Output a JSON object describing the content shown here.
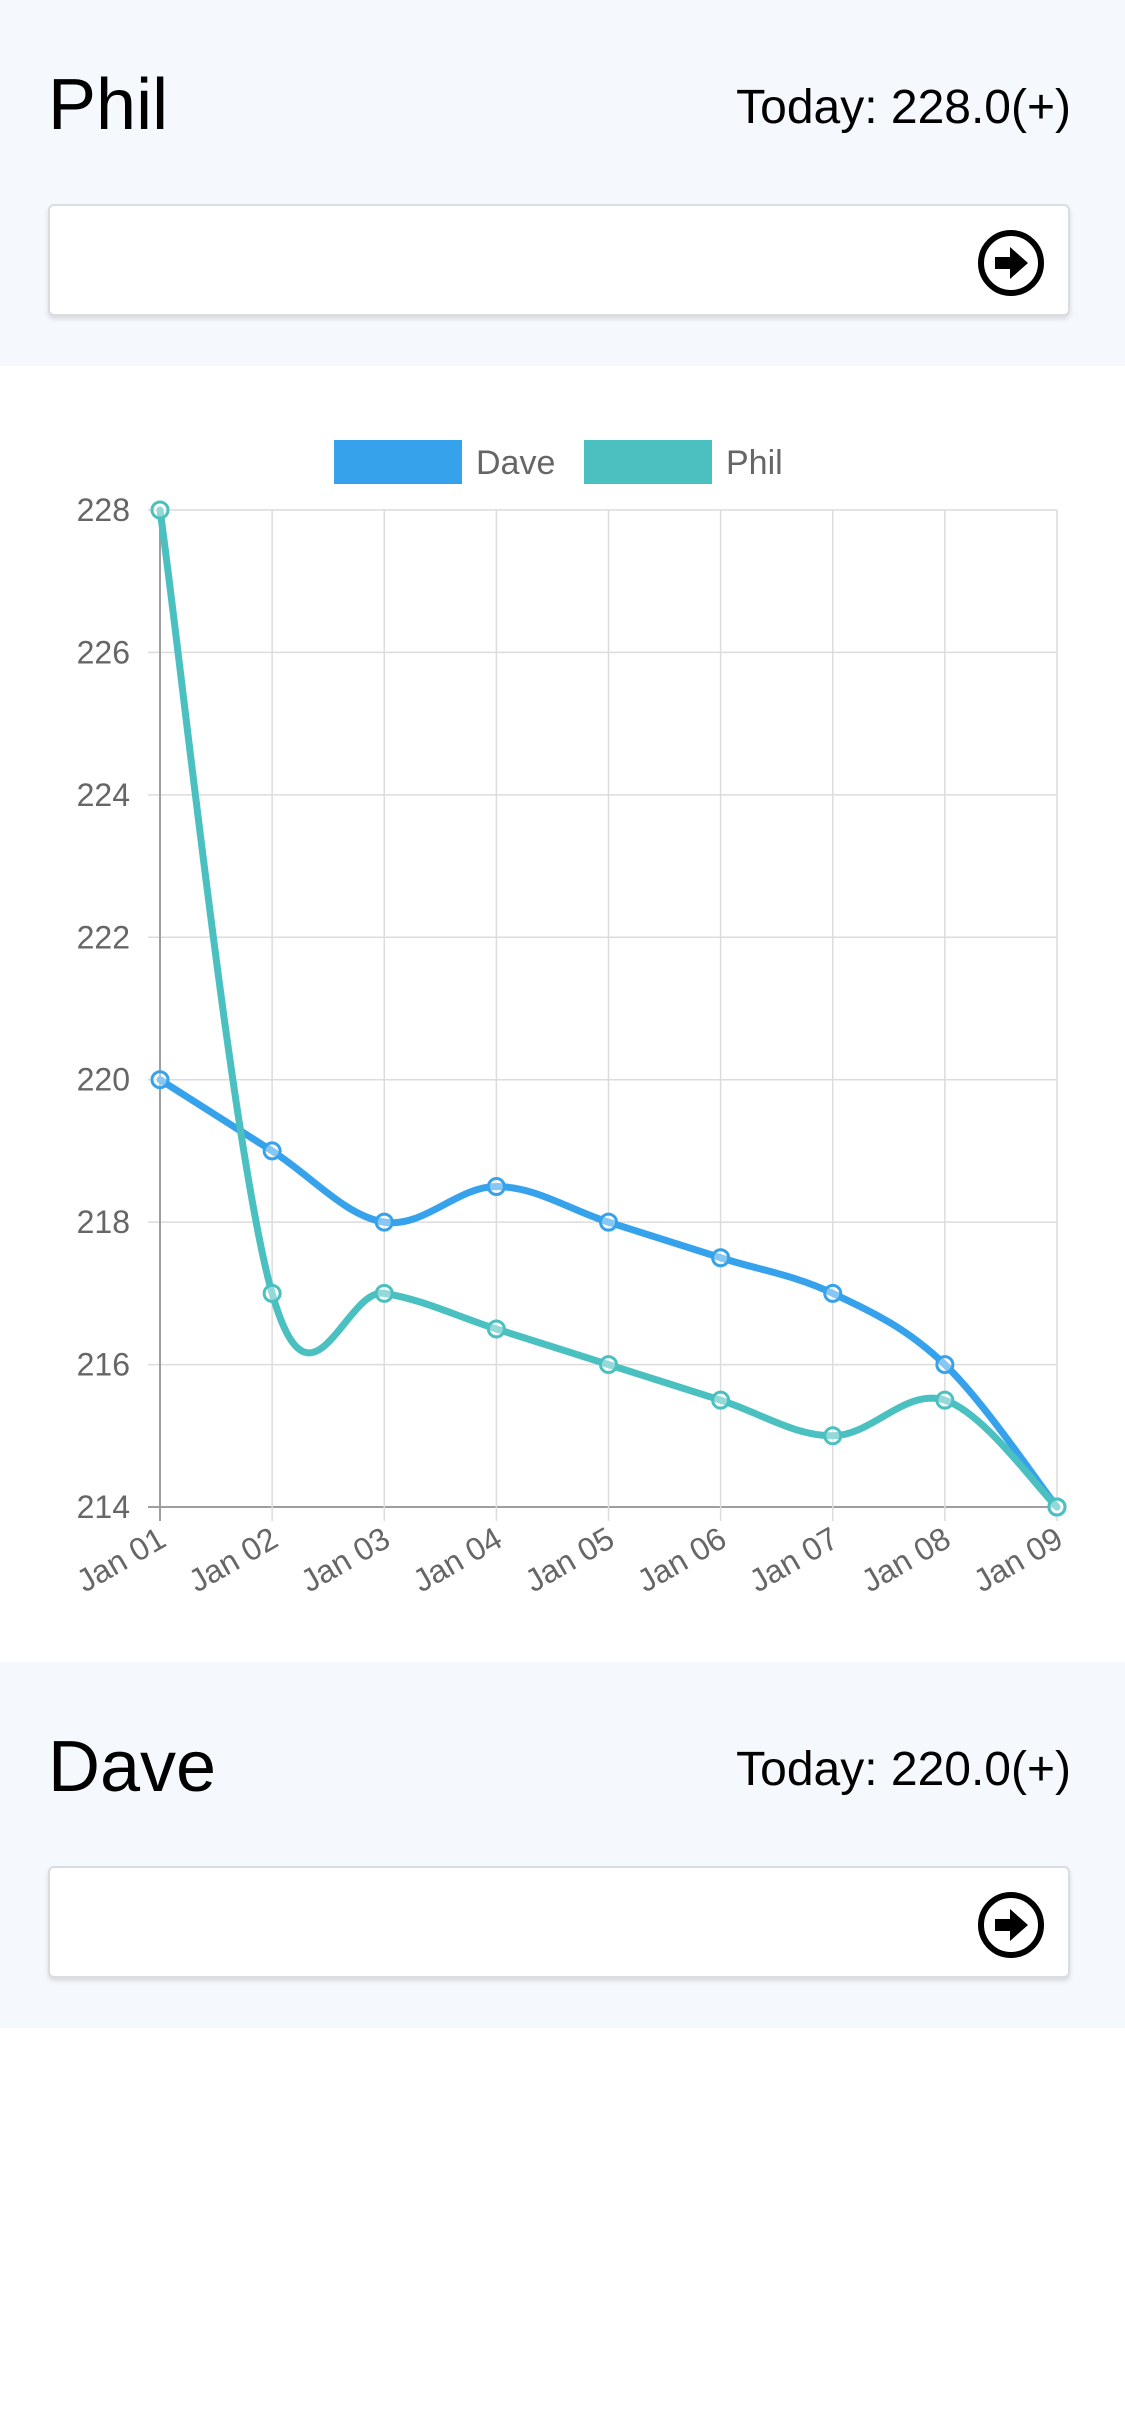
{
  "cards": {
    "phil": {
      "name": "Phil",
      "today": "Today: 228.0(+)",
      "input_value": "",
      "submit_icon": "arrow-right-circle-icon"
    },
    "dave": {
      "name": "Dave",
      "today": "Today: 220.0(+)",
      "input_value": "",
      "submit_icon": "arrow-right-circle-icon"
    }
  },
  "chart_data": {
    "type": "line",
    "categories": [
      "Jan 01",
      "Jan 02",
      "Jan 03",
      "Jan 04",
      "Jan 05",
      "Jan 06",
      "Jan 07",
      "Jan 08",
      "Jan 09"
    ],
    "series": [
      {
        "name": "Dave",
        "color": "#36a2eb",
        "values": [
          220,
          219,
          218,
          218.5,
          218,
          217.5,
          217,
          216,
          214
        ]
      },
      {
        "name": "Phil",
        "color": "#4bc0c0",
        "values": [
          228,
          217,
          217,
          216.5,
          216,
          215.5,
          215,
          215.5,
          214
        ]
      }
    ],
    "ylim": [
      214,
      228
    ],
    "yticks": [
      "214",
      "216",
      "218",
      "220",
      "222",
      "224",
      "226",
      "228"
    ],
    "grid": true,
    "legend_position": "top"
  }
}
